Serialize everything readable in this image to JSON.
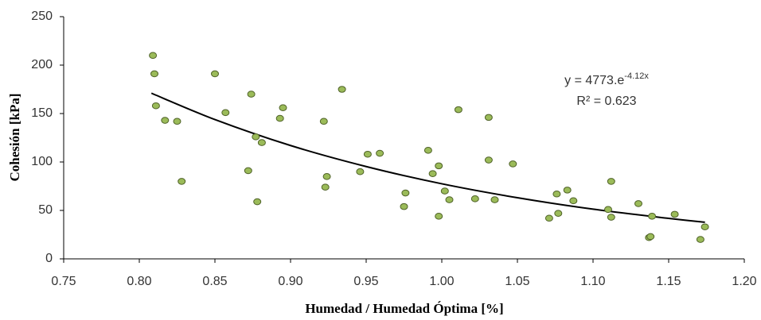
{
  "chart_data": {
    "type": "scatter",
    "x_label": "Humedad / Humedad Óptima [%]",
    "y_label": "Cohesión [kPa]",
    "equation": {
      "base": "y = 4773.e",
      "exponent": "-4.12x"
    },
    "r_squared": "R² = 0.623",
    "xlim": [
      0.75,
      1.2
    ],
    "xticks": [
      {
        "value": 0.75,
        "label": "0.75"
      },
      {
        "value": 0.8,
        "label": "0.80"
      },
      {
        "value": 0.85,
        "label": "0.85"
      },
      {
        "value": 0.9,
        "label": "0.90"
      },
      {
        "value": 0.95,
        "label": "0.95"
      },
      {
        "value": 1.0,
        "label": "1.00"
      },
      {
        "value": 1.05,
        "label": "1.05"
      },
      {
        "value": 1.1,
        "label": "1.10"
      },
      {
        "value": 1.15,
        "label": "1.15"
      },
      {
        "value": 1.2,
        "label": "1.20"
      }
    ],
    "ylim": [
      0,
      250
    ],
    "yticks": [
      0,
      50,
      100,
      150,
      200,
      250
    ],
    "grid": false,
    "series": [
      {
        "color": "#9bbb59",
        "x": [
          0.809,
          0.81,
          0.811,
          0.817,
          0.825,
          0.828,
          0.85,
          0.857,
          0.872,
          0.874,
          0.877,
          0.878,
          0.881,
          0.893,
          0.895,
          0.922,
          0.923,
          0.924,
          0.934,
          0.946,
          0.951,
          0.959,
          0.975,
          0.976,
          0.991,
          0.994,
          0.998,
          0.998,
          1.002,
          1.005,
          1.011,
          1.022,
          1.031,
          1.031,
          1.035,
          1.047,
          1.071,
          1.076,
          1.077,
          1.083,
          1.087,
          1.11,
          1.112,
          1.112,
          1.13,
          1.137,
          1.138,
          1.139,
          1.154,
          1.171,
          1.174
        ],
        "values": [
          210,
          191,
          158,
          143,
          142,
          80,
          191,
          151,
          91,
          170,
          126,
          59,
          120,
          145,
          156,
          142,
          74,
          85,
          175,
          90,
          108,
          109,
          54,
          68,
          112,
          88,
          96,
          44,
          70,
          61,
          154,
          62,
          146,
          102,
          61,
          98,
          42,
          67,
          47,
          71,
          60,
          51,
          80,
          43,
          57,
          22,
          23,
          44,
          46,
          20,
          33
        ]
      }
    ],
    "trendline": {
      "color": "#000000",
      "x": [
        0.808,
        0.85,
        0.9,
        0.95,
        1.0,
        1.05,
        1.1,
        1.15,
        1.174
      ],
      "values": [
        171,
        143.8,
        117,
        95.3,
        77.5,
        63.1,
        51.3,
        41.8,
        37.8
      ]
    }
  }
}
